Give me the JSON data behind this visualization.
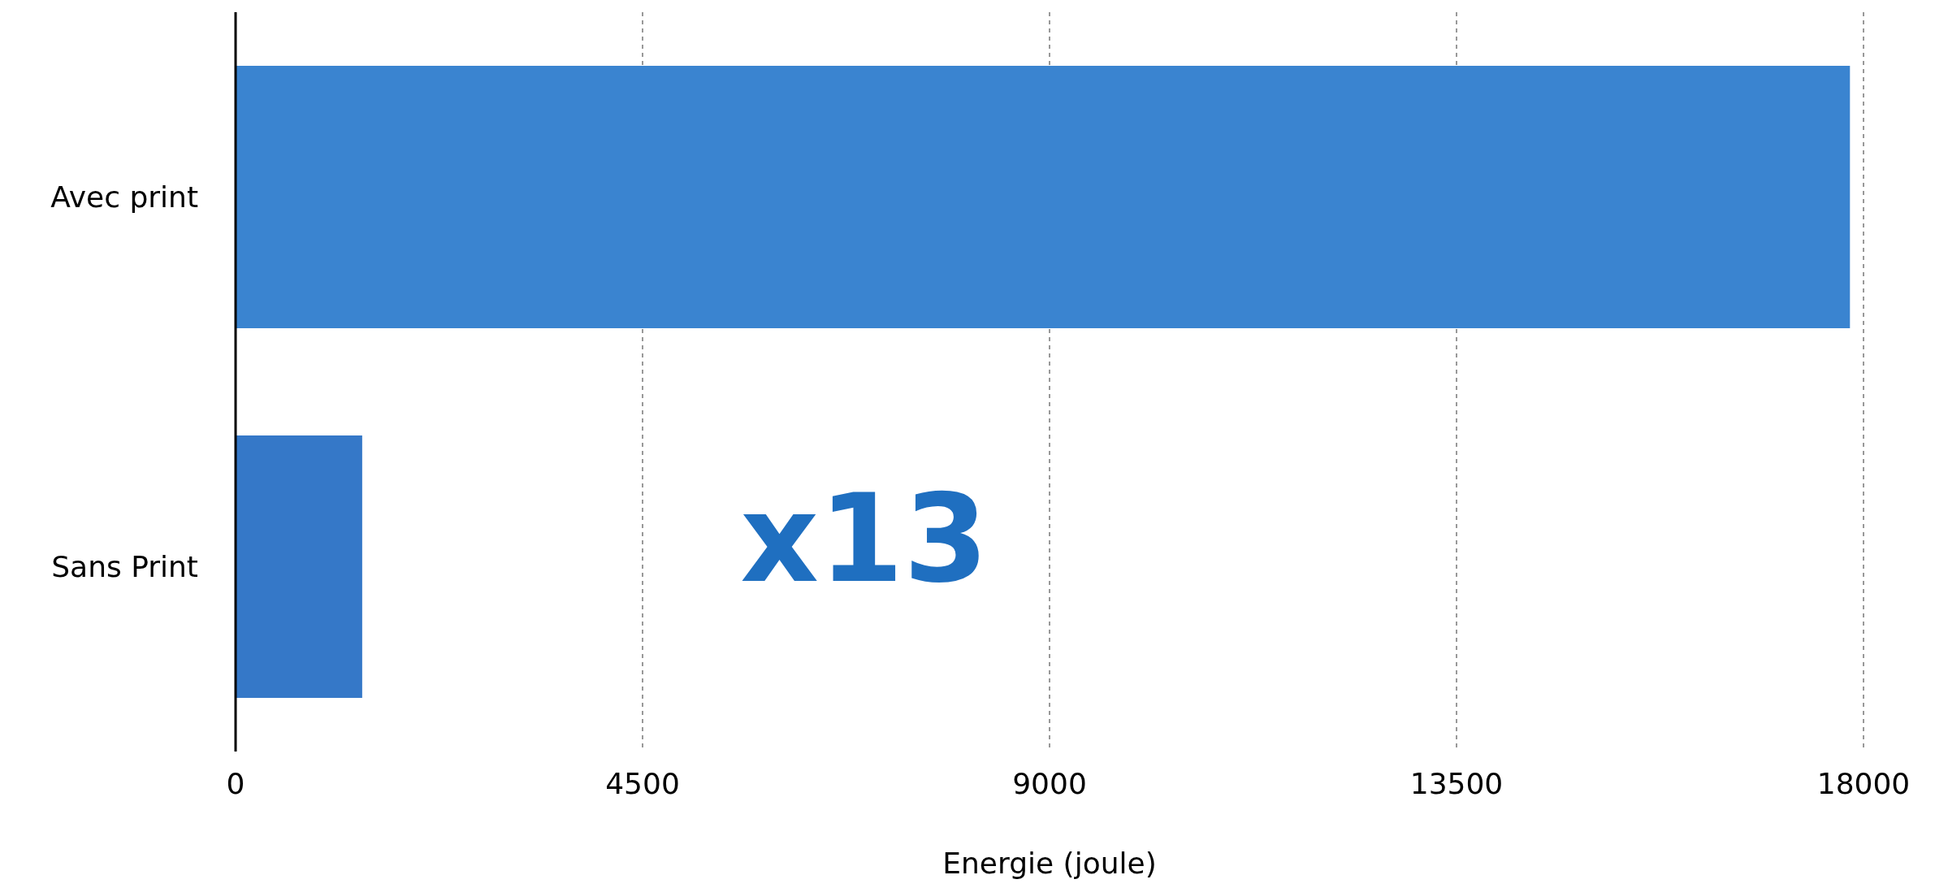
{
  "chart_data": {
    "type": "bar",
    "orientation": "horizontal",
    "categories": [
      "Avec print",
      "Sans Print"
    ],
    "values": [
      17850,
      1400
    ],
    "colors": [
      "#3a84d0",
      "#3578c8"
    ],
    "xlabel": "Energie (joule)",
    "xlim": [
      0,
      18000
    ],
    "xticks": [
      0,
      4500,
      9000,
      13500,
      18000
    ],
    "grid": "x",
    "annotations": [
      "x13"
    ]
  }
}
